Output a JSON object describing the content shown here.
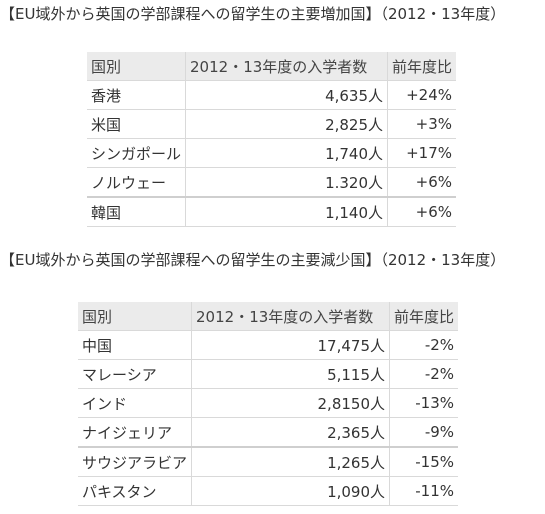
{
  "increase": {
    "title": "【EU域外から英国の学部課程への留学生の主要増加国】（2012・13年度）",
    "headers": {
      "country": "国別",
      "students": "2012・13年度の入学者数",
      "change": "前年度比"
    },
    "rows": [
      {
        "country": "香港",
        "students": "4,635人",
        "change": "+24%"
      },
      {
        "country": "米国",
        "students": "2,825人",
        "change": "+3%"
      },
      {
        "country": "シンガポール",
        "students": "1,740人",
        "change": "+17%"
      },
      {
        "country": "ノルウェー",
        "students": "1.320人",
        "change": "+6%"
      },
      {
        "country": "韓国",
        "students": "1,140人",
        "change": "+6%"
      }
    ]
  },
  "decrease": {
    "title": "【EU域外から英国の学部課程への留学生の主要減少国】（2012・13年度）",
    "headers": {
      "country": "国別",
      "students": "2012・13年度の入学者数",
      "change": "前年度比"
    },
    "rows": [
      {
        "country": "中国",
        "students": "17,475人",
        "change": "-2%"
      },
      {
        "country": "マレーシア",
        "students": "5,115人",
        "change": "-2%"
      },
      {
        "country": "インド",
        "students": "2,8150人",
        "change": "-13%"
      },
      {
        "country": "ナイジェリア",
        "students": "2,365人",
        "change": "-9%"
      },
      {
        "country": "サウジアラビア",
        "students": "1,265人",
        "change": "-15%"
      },
      {
        "country": "パキスタン",
        "students": "1,090人",
        "change": "-11%"
      }
    ]
  }
}
